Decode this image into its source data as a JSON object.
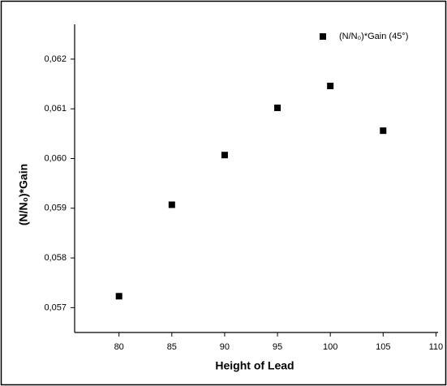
{
  "chart_data": {
    "type": "scatter",
    "x_label": "Height of Lead",
    "y_label": "(N/N₀)*Gain",
    "series": [
      {
        "name": "(N/N₀)*Gain (45°)",
        "color": "#000000",
        "x": [
          80,
          85,
          90,
          95,
          100,
          105
        ],
        "values": [
          0.05723,
          0.05907,
          0.06007,
          0.06102,
          0.06146,
          0.06056
        ]
      }
    ],
    "xlim": [
      75.8,
      110.2
    ],
    "ylim": [
      0.0565,
      0.0627
    ],
    "xticks": [
      80,
      85,
      90,
      95,
      100,
      105,
      110
    ],
    "yticks": [
      {
        "value": 0.057,
        "label": "0,057"
      },
      {
        "value": 0.058,
        "label": "0,058"
      },
      {
        "value": 0.059,
        "label": "0,059"
      },
      {
        "value": 0.06,
        "label": "0,060"
      },
      {
        "value": 0.061,
        "label": "0,061"
      },
      {
        "value": 0.062,
        "label": "0,062"
      }
    ],
    "legend": "top-right"
  }
}
